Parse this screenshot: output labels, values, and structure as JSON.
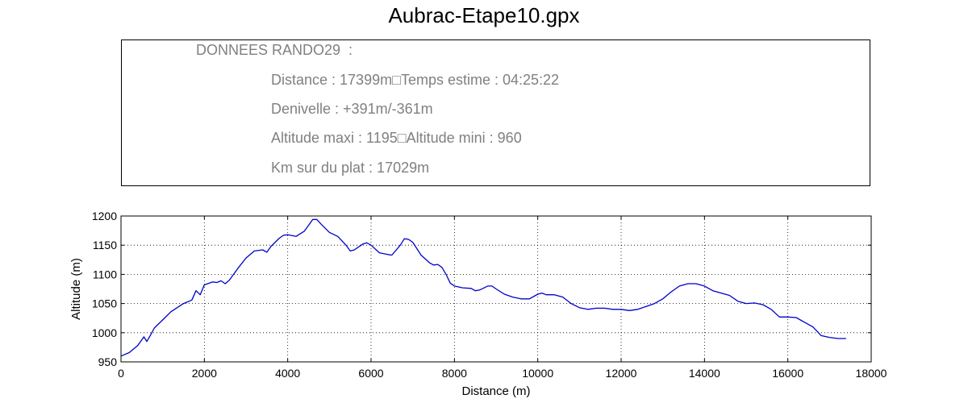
{
  "title": "Aubrac-Etape10.gpx",
  "info": {
    "header": "DONNEES RANDO29  :",
    "distance_line": "Distance : 17399m□Temps estime : 04:25:22",
    "denivele_line": "Denivelle : +391m/-361m",
    "altitude_line": "Altitude maxi : 1195□Altitude mini : 960",
    "plat_line": "Km sur du plat : 17029m"
  },
  "chart_data": {
    "type": "line",
    "xlabel": "Distance (m)",
    "ylabel": "Altitude (m)",
    "xlim": [
      0,
      18000
    ],
    "ylim": [
      950,
      1200
    ],
    "xticks": [
      0,
      2000,
      4000,
      6000,
      8000,
      10000,
      12000,
      14000,
      16000,
      18000
    ],
    "yticks": [
      950,
      1000,
      1050,
      1100,
      1150,
      1200
    ],
    "grid": true,
    "line_color": "#0000cc",
    "series": [
      {
        "x": [
          0,
          200,
          400,
          550,
          620,
          700,
          800,
          1000,
          1200,
          1500,
          1700,
          1800,
          1900,
          2000,
          2200,
          2300,
          2400,
          2500,
          2600,
          2800,
          3000,
          3200,
          3400,
          3500,
          3600,
          3800,
          3900,
          4000,
          4200,
          4400,
          4500,
          4600,
          4700,
          4800,
          5000,
          5200,
          5400,
          5500,
          5600,
          5800,
          5900,
          6000,
          6200,
          6400,
          6500,
          6700,
          6800,
          6900,
          7000,
          7200,
          7400,
          7500,
          7600,
          7700,
          7800,
          7900,
          8000,
          8200,
          8400,
          8500,
          8600,
          8800,
          8900,
          9000,
          9200,
          9400,
          9600,
          9800,
          10000,
          10100,
          10200,
          10400,
          10600,
          10800,
          11000,
          11200,
          11400,
          11600,
          11800,
          12000,
          12200,
          12400,
          12600,
          12800,
          13000,
          13200,
          13400,
          13600,
          13800,
          14000,
          14200,
          14400,
          14600,
          14800,
          15000,
          15200,
          15400,
          15600,
          15800,
          16000,
          16200,
          16400,
          16600,
          16800,
          17000,
          17200,
          17399
        ],
        "y": [
          960,
          966,
          978,
          993,
          985,
          995,
          1008,
          1022,
          1036,
          1050,
          1056,
          1072,
          1065,
          1082,
          1087,
          1086,
          1089,
          1084,
          1090,
          1110,
          1128,
          1140,
          1142,
          1138,
          1148,
          1162,
          1167,
          1168,
          1165,
          1174,
          1184,
          1194,
          1194,
          1186,
          1172,
          1165,
          1150,
          1140,
          1142,
          1152,
          1154,
          1150,
          1137,
          1134,
          1133,
          1150,
          1161,
          1160,
          1155,
          1133,
          1120,
          1116,
          1117,
          1112,
          1100,
          1085,
          1080,
          1077,
          1076,
          1072,
          1073,
          1080,
          1080,
          1075,
          1066,
          1061,
          1058,
          1058,
          1066,
          1068,
          1065,
          1065,
          1061,
          1050,
          1043,
          1040,
          1042,
          1042,
          1040,
          1040,
          1038,
          1040,
          1045,
          1050,
          1058,
          1070,
          1080,
          1084,
          1084,
          1080,
          1072,
          1068,
          1064,
          1054,
          1050,
          1051,
          1048,
          1040,
          1027,
          1027,
          1026,
          1018,
          1010,
          995,
          992,
          990,
          990
        ]
      }
    ]
  }
}
